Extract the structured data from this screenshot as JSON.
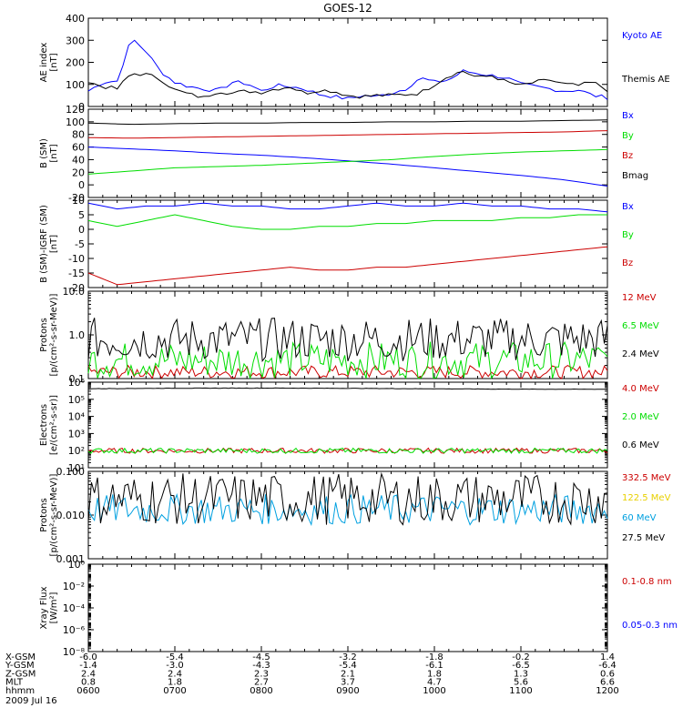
{
  "title": "GOES-12",
  "date_label": "2009 Jul 16",
  "colors": {
    "black": "#000000",
    "blue": "#0000ff",
    "red": "#cc0000",
    "green": "#00dd00",
    "cyan": "#00a0e0",
    "yellow": "#e8d000"
  },
  "ephemeris": {
    "rows": [
      {
        "label": "X-GSM",
        "values": [
          "-6.0",
          "-5.4",
          "-4.5",
          "-3.2",
          "-1.8",
          "-0.2",
          "1.4"
        ]
      },
      {
        "label": "Y-GSM",
        "values": [
          "-1.4",
          "-3.0",
          "-4.3",
          "-5.4",
          "-6.1",
          "-6.5",
          "-6.4"
        ]
      },
      {
        "label": "Z-GSM",
        "values": [
          "2.4",
          "2.4",
          "2.3",
          "2.1",
          "1.8",
          "1.3",
          "0.6"
        ]
      },
      {
        "label": "MLT",
        "values": [
          "0.8",
          "1.8",
          "2.7",
          "3.7",
          "4.7",
          "5.6",
          "6.6"
        ]
      },
      {
        "label": "hhmm",
        "values": [
          "0600",
          "0700",
          "0800",
          "0900",
          "1000",
          "1100",
          "1200"
        ]
      }
    ]
  },
  "chart_data": [
    {
      "type": "line",
      "panel": "ae",
      "ylabel": "AE index\n[nT]",
      "ylim": [
        0,
        400
      ],
      "yticks": [
        "0",
        "100",
        "200",
        "300",
        "400"
      ],
      "legend": [
        {
          "label": "Kyoto AE",
          "color": "blue"
        },
        {
          "label": "Themis AE",
          "color": "black"
        }
      ],
      "x": [
        "06:00",
        "06:10",
        "06:20",
        "06:30",
        "06:40",
        "06:50",
        "07:00",
        "07:10",
        "07:20",
        "07:30",
        "07:40",
        "07:50",
        "08:00",
        "08:10",
        "08:20",
        "08:30",
        "08:40",
        "08:50",
        "09:00",
        "09:10",
        "09:20",
        "09:30",
        "09:40",
        "09:50",
        "10:00",
        "10:10",
        "10:20",
        "10:30",
        "10:40",
        "10:50",
        "11:00",
        "11:10",
        "11:20",
        "11:30",
        "11:40",
        "11:50",
        "12:00"
      ],
      "series": [
        {
          "name": "Kyoto AE",
          "color": "blue",
          "values": [
            70,
            110,
            115,
            310,
            250,
            160,
            110,
            90,
            80,
            70,
            110,
            105,
            70,
            95,
            90,
            80,
            55,
            45,
            35,
            50,
            45,
            60,
            80,
            130,
            110,
            120,
            160,
            150,
            140,
            130,
            100,
            90,
            80,
            70,
            75,
            50,
            40
          ]
        },
        {
          "name": "Themis AE",
          "color": "black",
          "values": [
            110,
            90,
            80,
            150,
            145,
            125,
            75,
            55,
            40,
            70,
            60,
            70,
            65,
            80,
            90,
            60,
            75,
            70,
            50,
            45,
            50,
            50,
            55,
            60,
            100,
            140,
            160,
            130,
            140,
            110,
            95,
            110,
            120,
            100,
            95,
            110,
            75
          ]
        }
      ]
    },
    {
      "type": "line",
      "panel": "b_sm",
      "ylabel": "B (SM)\n[nT]",
      "ylim": [
        -20,
        120
      ],
      "yticks": [
        "-20",
        "0",
        "20",
        "40",
        "60",
        "80",
        "100",
        "120"
      ],
      "legend": [
        {
          "label": "Bx",
          "color": "blue"
        },
        {
          "label": "By",
          "color": "green"
        },
        {
          "label": "Bz",
          "color": "red"
        },
        {
          "label": "Bmag",
          "color": "black"
        }
      ],
      "x": [
        "06:00",
        "06:30",
        "07:00",
        "07:30",
        "08:00",
        "08:30",
        "09:00",
        "09:30",
        "10:00",
        "10:30",
        "11:00",
        "11:30",
        "12:00"
      ],
      "series": [
        {
          "name": "Bx",
          "color": "blue",
          "values": [
            60,
            57,
            54,
            50,
            47,
            43,
            38,
            33,
            27,
            21,
            15,
            8,
            -2
          ]
        },
        {
          "name": "By",
          "color": "green",
          "values": [
            17,
            22,
            27,
            29,
            31,
            34,
            37,
            40,
            45,
            49,
            52,
            54,
            56
          ]
        },
        {
          "name": "Bz",
          "color": "red",
          "values": [
            75,
            74,
            75,
            76,
            77,
            78,
            79,
            80,
            81,
            82,
            83,
            84,
            86
          ]
        },
        {
          "name": "Bmag",
          "color": "black",
          "values": [
            98,
            96,
            97,
            98,
            98,
            99,
            99,
            100,
            100,
            101,
            101,
            102,
            103
          ]
        }
      ]
    },
    {
      "type": "line",
      "panel": "b_sm_igrf",
      "ylabel": "B (SM)-IGRF (SM)\n[nT]",
      "ylim": [
        -20,
        10
      ],
      "yticks": [
        "-20",
        "-15",
        "-10",
        "-5",
        "0",
        "5",
        "10"
      ],
      "legend": [
        {
          "label": "Bx",
          "color": "blue"
        },
        {
          "label": "By",
          "color": "green"
        },
        {
          "label": "Bz",
          "color": "red"
        }
      ],
      "x": [
        "06:00",
        "06:20",
        "06:40",
        "07:00",
        "07:20",
        "07:40",
        "08:00",
        "08:20",
        "08:40",
        "09:00",
        "09:20",
        "09:40",
        "10:00",
        "10:20",
        "10:40",
        "11:00",
        "11:20",
        "11:40",
        "12:00"
      ],
      "series": [
        {
          "name": "Bx",
          "color": "blue",
          "values": [
            9,
            7,
            8,
            8,
            9,
            8,
            8,
            7,
            7,
            8,
            9,
            8,
            8,
            9,
            8,
            8,
            7,
            7,
            6
          ]
        },
        {
          "name": "By",
          "color": "green",
          "values": [
            3,
            1,
            3,
            5,
            3,
            1,
            0,
            0,
            1,
            1,
            2,
            2,
            3,
            3,
            3,
            4,
            4,
            5,
            5
          ]
        },
        {
          "name": "Bz",
          "color": "red",
          "values": [
            -15,
            -19,
            -18,
            -17,
            -16,
            -15,
            -14,
            -13,
            -14,
            -14,
            -13,
            -13,
            -12,
            -11,
            -10,
            -9,
            -8,
            -7,
            -6
          ]
        }
      ]
    },
    {
      "type": "line",
      "panel": "protons_high",
      "scale": "log",
      "ylabel": "Protons\n[p/(cm²-s-sr-MeV)]",
      "ylim": [
        0.1,
        10.0
      ],
      "yticks": [
        "0.1",
        "1.0",
        "10.0"
      ],
      "legend": [
        {
          "label": "12 MeV",
          "color": "red"
        },
        {
          "label": "6.5 MeV",
          "color": "green"
        },
        {
          "label": "2.4 MeV",
          "color": "black"
        }
      ],
      "x": [
        "06:00",
        "12:00"
      ],
      "series": [
        {
          "name": "12 MeV",
          "color": "red",
          "range": [
            0.1,
            0.2
          ]
        },
        {
          "name": "6.5 MeV",
          "color": "green",
          "range": [
            0.1,
            0.7
          ]
        },
        {
          "name": "2.4 MeV",
          "color": "black",
          "range": [
            0.25,
            2.5
          ]
        }
      ]
    },
    {
      "type": "line",
      "panel": "electrons",
      "scale": "log",
      "ylabel": "Electrons\n[e/(cm²-s-sr)]",
      "ylim": [
        10,
        1000000
      ],
      "yticks": [
        "10¹",
        "10²",
        "10³",
        "10⁴",
        "10⁵",
        "10⁶"
      ],
      "legend": [
        {
          "label": "4.0 MeV",
          "color": "red"
        },
        {
          "label": "2.0 MeV",
          "color": "green"
        },
        {
          "label": "0.6 MeV",
          "color": "black"
        }
      ],
      "x": [
        "06:00",
        "12:00"
      ],
      "series": [
        {
          "name": "4.0 MeV",
          "color": "red",
          "range": [
            70,
            140
          ]
        },
        {
          "name": "2.0 MeV",
          "color": "green",
          "range": [
            70,
            140
          ]
        },
        {
          "name": "0.6 MeV",
          "color": "black",
          "range": [
            300000,
            500000
          ]
        }
      ]
    },
    {
      "type": "line",
      "panel": "protons_low",
      "scale": "log",
      "ylabel": "Protons\n[p/(cm²-s-sr-MeV)]",
      "ylim": [
        0.001,
        0.1
      ],
      "yticks": [
        "0.001",
        "0.010",
        "0.100"
      ],
      "legend": [
        {
          "label": "332.5 MeV",
          "color": "red"
        },
        {
          "label": "122.5 MeV",
          "color": "yellow"
        },
        {
          "label": "60 MeV",
          "color": "cyan"
        },
        {
          "label": "27.5 MeV",
          "color": "black"
        }
      ],
      "x": [
        "06:00",
        "12:00"
      ],
      "series": [
        {
          "name": "60 MeV",
          "color": "cyan",
          "range": [
            0.006,
            0.03
          ]
        },
        {
          "name": "27.5 MeV",
          "color": "black",
          "range": [
            0.006,
            0.09
          ]
        }
      ]
    },
    {
      "type": "line",
      "panel": "xray",
      "scale": "log",
      "ylabel": "Xray Flux\n[W/m²]",
      "ylim": [
        1e-09,
        1
      ],
      "yticks": [
        "10⁻⁸",
        "10⁻⁶",
        "10⁻⁴",
        "10⁻²",
        "10⁰"
      ],
      "legend": [
        {
          "label": "0.1-0.8 nm",
          "color": "red"
        },
        {
          "label": "0.05-0.3 nm",
          "color": "blue"
        }
      ],
      "x": [
        "06:00",
        "12:00"
      ],
      "series": []
    }
  ]
}
